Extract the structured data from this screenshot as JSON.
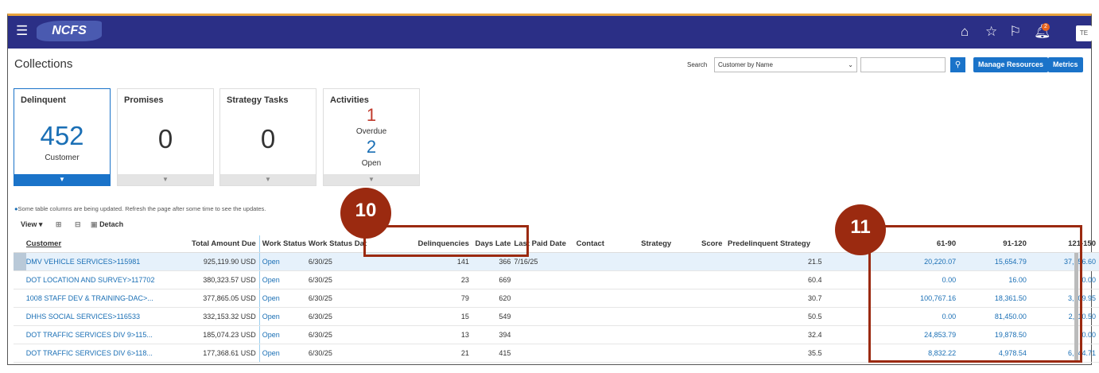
{
  "nav": {
    "logo": "NCFS",
    "notification_count": "2",
    "avatar": "TE"
  },
  "page": {
    "title": "Collections"
  },
  "search": {
    "label": "Search",
    "selected": "Customer by Name",
    "input_value": "",
    "placeholder": ""
  },
  "buttons": {
    "manage_resources": "Manage Resources",
    "metrics": "Metrics"
  },
  "cards": [
    {
      "label": "Delinquent",
      "value": "452",
      "sub": "Customer"
    },
    {
      "label": "Promises",
      "value": "0"
    },
    {
      "label": "Strategy Tasks",
      "value": "0"
    },
    {
      "label": "Activities",
      "overdue_value": "1",
      "overdue_label": "Overdue",
      "open_value": "2",
      "open_label": "Open"
    }
  ],
  "info_message": "Some table columns are being updated. Refresh the page after some time to see the updates.",
  "toolbar": {
    "view": "View",
    "detach": "Detach"
  },
  "table": {
    "columns": [
      "Customer",
      "Total Amount Due",
      "Work Status",
      "Work Status Dat",
      "Delinquencies",
      "Days Late",
      "Last Paid Date",
      "Contact",
      "Strategy",
      "Score",
      "Predelinquent Strategy",
      "61-90",
      "91-120",
      "121-150"
    ],
    "rows": [
      [
        "DMV VEHICLE SERVICES>115981",
        "925,119.90 USD",
        "Open",
        "6/30/25",
        "141",
        "366",
        "7/16/25",
        "",
        "",
        "21.5",
        "",
        "20,220.07",
        "15,654.79",
        "37,656.60"
      ],
      [
        "DOT LOCATION AND SURVEY>117702",
        "380,323.57 USD",
        "Open",
        "6/30/25",
        "23",
        "669",
        "",
        "",
        "",
        "60.4",
        "",
        "0.00",
        "16.00",
        "0.00"
      ],
      [
        "1008 STAFF DEV & TRAINING-DAC>...",
        "377,865.05 USD",
        "Open",
        "6/30/25",
        "79",
        "620",
        "",
        "",
        "",
        "30.7",
        "",
        "100,767.16",
        "18,361.50",
        "3,109.95"
      ],
      [
        "DHHS SOCIAL SERVICES>116533",
        "332,153.32 USD",
        "Open",
        "6/30/25",
        "15",
        "549",
        "",
        "",
        "",
        "50.5",
        "",
        "0.00",
        "81,450.00",
        "2,110.50"
      ],
      [
        "DOT TRAFFIC SERVICES DIV 9>115...",
        "185,074.23 USD",
        "Open",
        "6/30/25",
        "13",
        "394",
        "",
        "",
        "",
        "32.4",
        "",
        "24,853.79",
        "19,878.50",
        "0.00"
      ],
      [
        "DOT TRAFFIC SERVICES DIV 6>118...",
        "177,368.61 USD",
        "Open",
        "6/30/25",
        "21",
        "415",
        "",
        "",
        "",
        "35.5",
        "",
        "8,832.22",
        "4,978.54",
        "6,844.71"
      ]
    ]
  },
  "annotations": [
    "10",
    "11"
  ],
  "colors": {
    "nav": "#2b2f86",
    "accent": "#1a73c9",
    "annotation": "#9b2a10",
    "overdue": "#c0392b"
  }
}
